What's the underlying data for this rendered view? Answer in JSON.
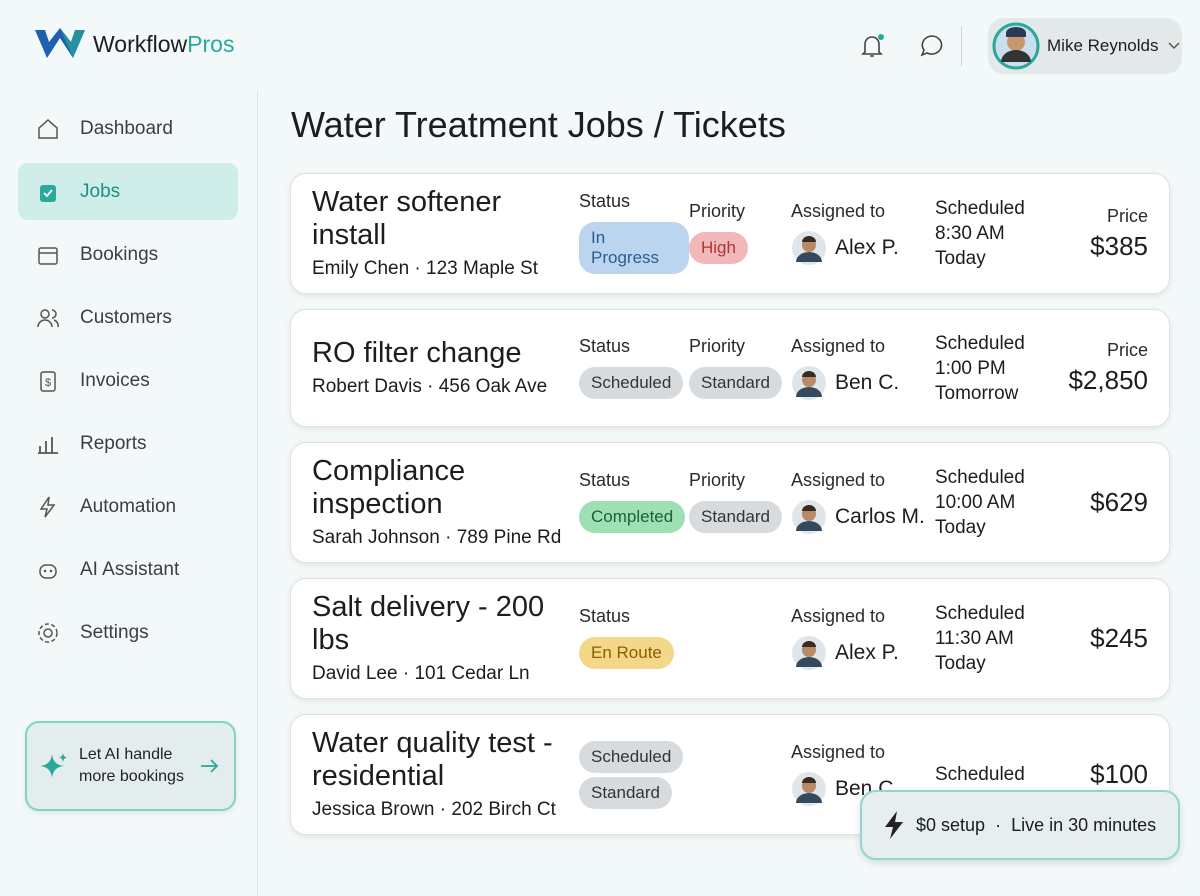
{
  "header": {
    "brand_a": "Workflow",
    "brand_b": "Pros",
    "user": "Mike Reynolds"
  },
  "nav": [
    "Dashboard",
    "Jobs",
    "Bookings",
    "Customers",
    "Invoices",
    "Reports",
    "Automation",
    "AI Assistant",
    "Settings"
  ],
  "active_nav": 1,
  "promo": {
    "line1": "Let AI handle",
    "line2": "more bookings"
  },
  "title": "Water Treatment Jobs / Tickets",
  "jobs": [
    {
      "title": "Water softener install",
      "customer": "Emily Chen · 123 Maple St",
      "status_label": "Status",
      "status": "In Progress",
      "status_bg": "#bcd5ef",
      "status_fg": "#2b5d90",
      "priority_label": "Priority",
      "priority": "High",
      "priority_bg": "#f0b8b8",
      "priority_fg": "#b23636",
      "assigned_label": "Assigned to",
      "assignee": "Alex P.",
      "scheduled_label": "Scheduled",
      "time": "8:30 AM",
      "day": "Today",
      "price_label": "Price",
      "price": "$385"
    },
    {
      "title": "RO filter change",
      "customer": "Robert Davis · 456 Oak Ave",
      "status_label": "Status",
      "status": "Scheduled",
      "status_bg": "#d8dbdd",
      "status_fg": "#333",
      "priority_label": "Priority",
      "priority": "Standard",
      "priority_bg": "#d8dbdd",
      "priority_fg": "#333",
      "assigned_label": "Assigned to",
      "assignee": "Ben C.",
      "scheduled_label": "Scheduled",
      "time": "1:00 PM",
      "day": "Tomorrow",
      "price_label": "Price",
      "price": "$2,850"
    },
    {
      "title": "Compliance inspection",
      "customer": "Sarah Johnson · 789 Pine Rd",
      "status_label": "Status",
      "status": "Completed",
      "status_bg": "#9fdfb4",
      "status_fg": "#1f5f36",
      "priority_label": "Priority",
      "priority": "Standard",
      "priority_bg": "#d8dbdd",
      "priority_fg": "#333",
      "assigned_label": "Assigned to",
      "assignee": "Carlos M.",
      "scheduled_label": "Scheduled",
      "time": "10:00 AM",
      "day": "Today",
      "price": "$629"
    },
    {
      "title": "Salt delivery - 200 lbs",
      "customer": "David Lee · 101 Cedar Ln",
      "status_label": "Status",
      "status": "En Route",
      "status_bg": "#f5d78a",
      "status_fg": "#8a5d00",
      "assigned_label": "Assigned to",
      "assignee": "Alex P.",
      "scheduled_label": "Scheduled",
      "time": "11:30 AM",
      "day": "Today",
      "price": "$245"
    },
    {
      "title": "Water quality test - residential",
      "customer": "Jessica Brown · 202 Birch Ct",
      "status": "Scheduled",
      "status_bg": "#d8dbdd",
      "status_fg": "#333",
      "priority": "Standard",
      "priority_bg": "#d8dbdd",
      "priority_fg": "#333",
      "assigned_label": "Assigned to",
      "assignee": "Ben C.",
      "scheduled_label": "Scheduled",
      "price": "$100"
    }
  ],
  "badge": {
    "setup": "$0 setup",
    "sep": "·",
    "live": "Live in 30 minutes"
  }
}
